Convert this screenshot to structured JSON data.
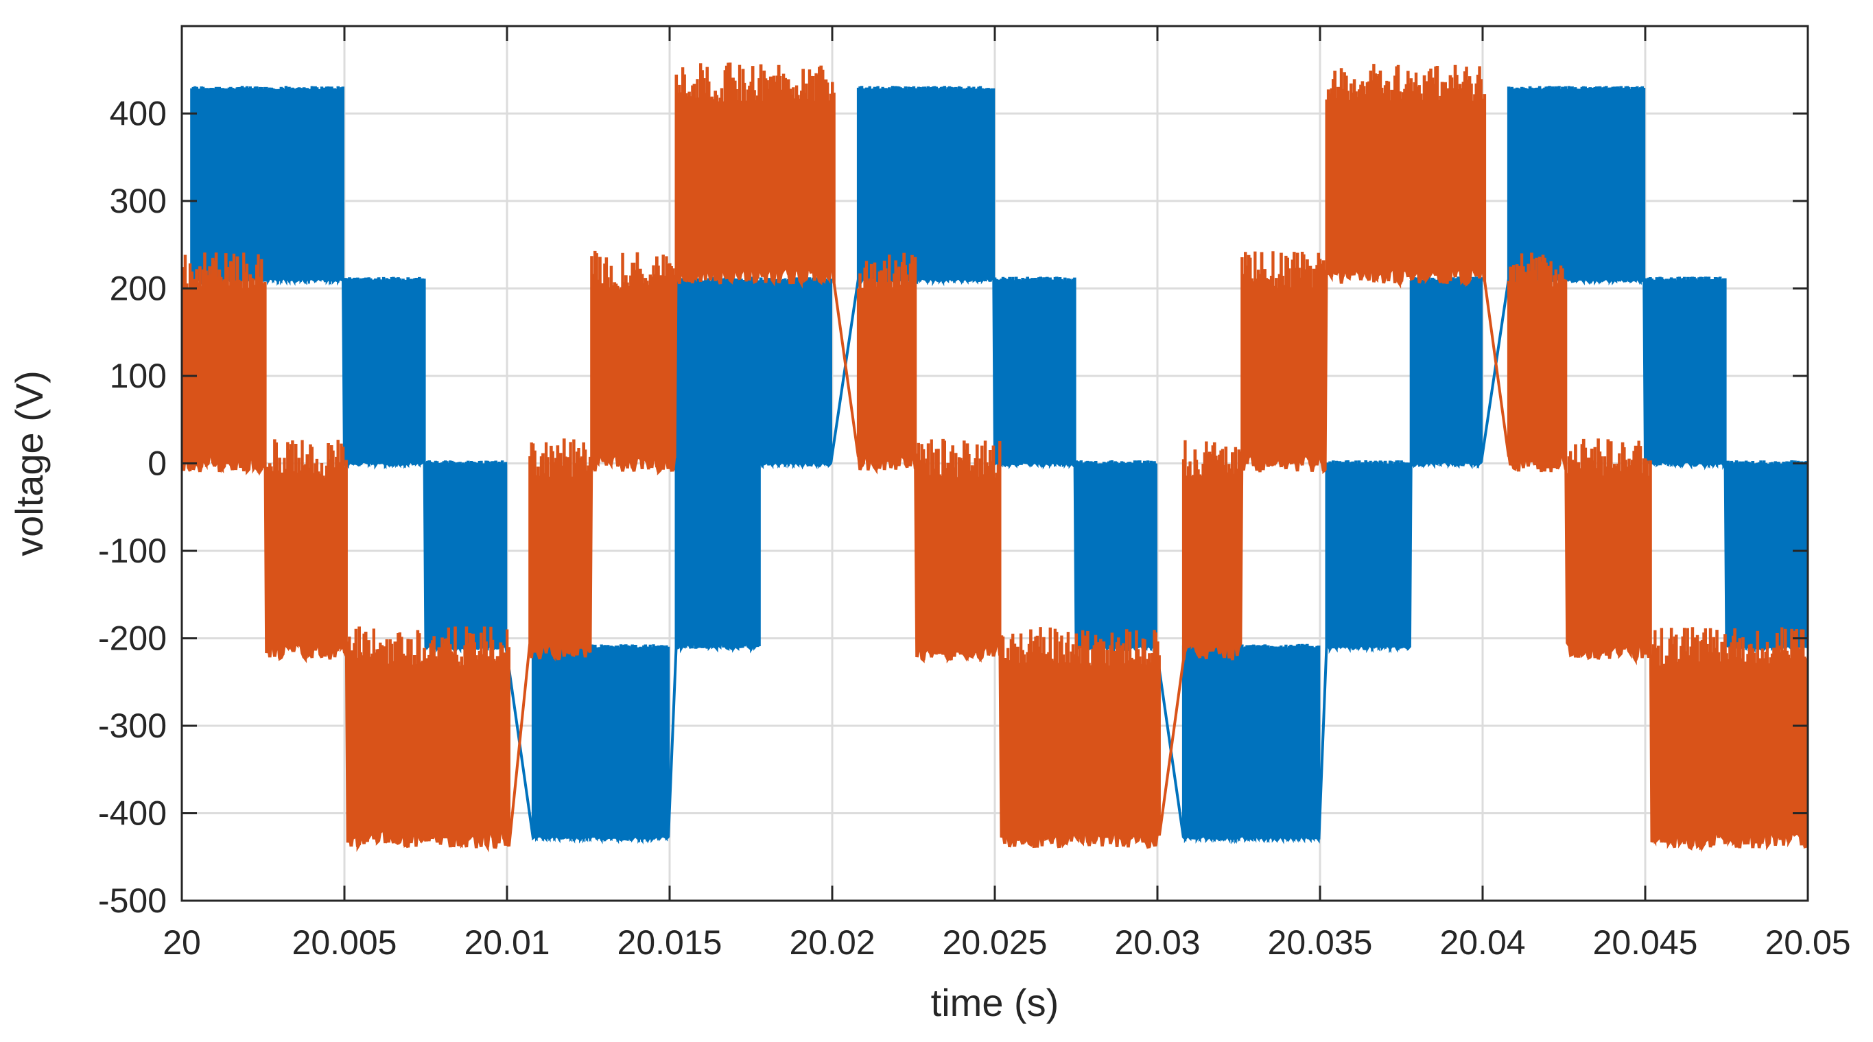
{
  "chart_data": {
    "type": "line",
    "title": "",
    "xlabel": "time (s)",
    "ylabel": "voltage (V)",
    "xlim": [
      20,
      20.05
    ],
    "ylim": [
      -500,
      500
    ],
    "grid": true,
    "legend": "none",
    "x_ticks": [
      20,
      20.005,
      20.01,
      20.015,
      20.02,
      20.025,
      20.03,
      20.035,
      20.04,
      20.045,
      20.05
    ],
    "x_tick_labels": [
      "20",
      "20.005",
      "20.01",
      "20.015",
      "20.02",
      "20.025",
      "20.03",
      "20.035",
      "20.04",
      "20.045",
      "20.05"
    ],
    "y_ticks": [
      -500,
      -400,
      -300,
      -200,
      -100,
      0,
      100,
      200,
      300,
      400
    ],
    "y_tick_labels": [
      "-500",
      "-400",
      "-300",
      "-200",
      "-100",
      "0",
      "100",
      "200",
      "300",
      "400"
    ],
    "series": [
      {
        "color": "#0072BD",
        "pwm_frequency_hz": 10000,
        "dwell_values": [
          {
            "x": 20.0,
            "y": 210
          },
          {
            "x": 20.0003,
            "y": 428
          },
          {
            "x": 20.005,
            "y": 210
          },
          {
            "x": 20.0075,
            "y": 0
          },
          {
            "x": 20.01,
            "y": -210
          },
          {
            "x": 20.015,
            "y": -428
          },
          {
            "x": 20.0152,
            "y": 0
          },
          {
            "x": 20.0178,
            "y": 210
          },
          {
            "x": 20.02,
            "y": 428
          },
          {
            "x": 20.025,
            "y": 210
          },
          {
            "x": 20.0275,
            "y": 0
          },
          {
            "x": 20.03,
            "y": -210
          },
          {
            "x": 20.035,
            "y": -428
          },
          {
            "x": 20.0352,
            "y": 0
          },
          {
            "x": 20.0378,
            "y": 210
          },
          {
            "x": 20.04,
            "y": 428
          },
          {
            "x": 20.045,
            "y": 210
          },
          {
            "x": 20.0475,
            "y": 0
          },
          {
            "x": 20.05,
            "y": -210
          }
        ],
        "levels": [
          {
            "x0": 20.0003,
            "x1": 20.005,
            "high": 428,
            "low": 210
          },
          {
            "x0": 20.005,
            "x1": 20.0075,
            "high": 210,
            "low": 0
          },
          {
            "x0": 20.0075,
            "x1": 20.01,
            "high": 0,
            "low": -210
          },
          {
            "x0": 20.0108,
            "x1": 20.015,
            "high": -210,
            "low": -428
          },
          {
            "x0": 20.0152,
            "x1": 20.0178,
            "high": 0,
            "low": -210
          },
          {
            "x0": 20.0152,
            "x1": 20.0178,
            "high": 210,
            "low": 0
          },
          {
            "x0": 20.0178,
            "x1": 20.02,
            "high": 210,
            "low": 0
          },
          {
            "x0": 20.0208,
            "x1": 20.025,
            "high": 428,
            "low": 210
          },
          {
            "x0": 20.025,
            "x1": 20.0275,
            "high": 210,
            "low": 0
          },
          {
            "x0": 20.0275,
            "x1": 20.03,
            "high": 0,
            "low": -210
          },
          {
            "x0": 20.0308,
            "x1": 20.035,
            "high": -210,
            "low": -428
          },
          {
            "x0": 20.0352,
            "x1": 20.0378,
            "high": 0,
            "low": -210
          },
          {
            "x0": 20.0378,
            "x1": 20.04,
            "high": 210,
            "low": 0
          },
          {
            "x0": 20.0408,
            "x1": 20.045,
            "high": 428,
            "low": 210
          },
          {
            "x0": 20.045,
            "x1": 20.0475,
            "high": 210,
            "low": 0
          },
          {
            "x0": 20.0475,
            "x1": 20.05,
            "high": 0,
            "low": -210
          }
        ]
      },
      {
        "color": "#D95319",
        "pwm_frequency_hz": 10000,
        "levels": [
          {
            "x0": 20.0,
            "x1": 20.0026,
            "high": 215,
            "low": 0
          },
          {
            "x0": 20.0026,
            "x1": 20.0051,
            "high": 0,
            "low": -215
          },
          {
            "x0": 20.0051,
            "x1": 20.0101,
            "high": -215,
            "low": -430
          },
          {
            "x0": 20.0107,
            "x1": 20.0126,
            "high": 0,
            "low": -215
          },
          {
            "x0": 20.0126,
            "x1": 20.0152,
            "high": 215,
            "low": 0
          },
          {
            "x0": 20.0152,
            "x1": 20.0201,
            "high": 430,
            "low": 215
          },
          {
            "x0": 20.0208,
            "x1": 20.0226,
            "high": 215,
            "low": 0
          },
          {
            "x0": 20.0226,
            "x1": 20.0252,
            "high": 0,
            "low": -215
          },
          {
            "x0": 20.0252,
            "x1": 20.0301,
            "high": -215,
            "low": -430
          },
          {
            "x0": 20.0308,
            "x1": 20.0326,
            "high": 0,
            "low": -215
          },
          {
            "x0": 20.0326,
            "x1": 20.0352,
            "high": 215,
            "low": 0
          },
          {
            "x0": 20.0352,
            "x1": 20.0401,
            "high": 430,
            "low": 215
          },
          {
            "x0": 20.0408,
            "x1": 20.0426,
            "high": 215,
            "low": 0
          },
          {
            "x0": 20.0426,
            "x1": 20.0452,
            "high": 0,
            "low": -215
          },
          {
            "x0": 20.0452,
            "x1": 20.05,
            "high": -215,
            "low": -430
          }
        ]
      }
    ]
  }
}
